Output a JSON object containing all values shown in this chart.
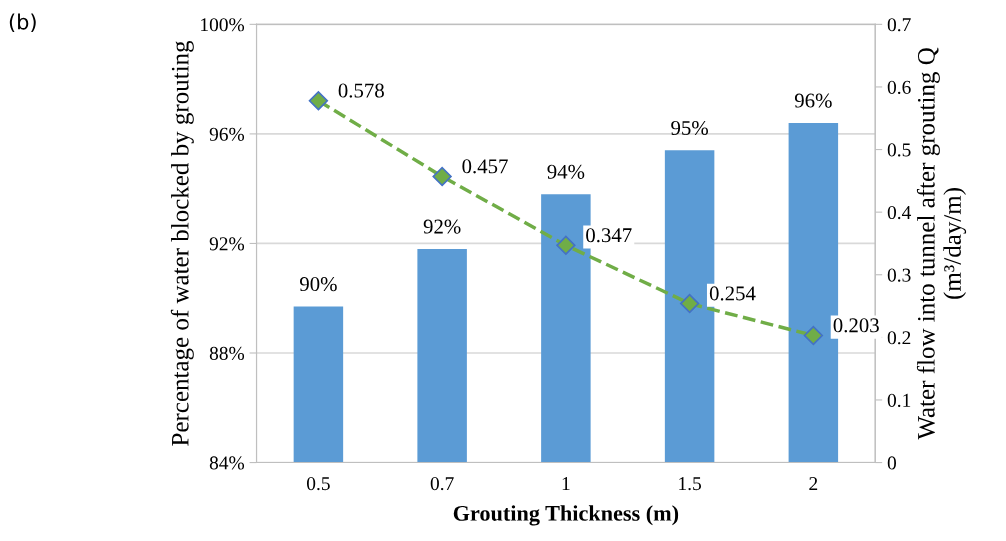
{
  "chart_data": {
    "type": "bar",
    "xlabel": "Grouting Thickness (m)",
    "ylabel": "Percentage of water blocked by grouting",
    "y2label": "Water flow into tunnel after grouting Q (m³/day/m)",
    "categories": [
      "0.5",
      "0.7",
      "1",
      "1.5",
      "2"
    ],
    "series": [
      {
        "color": "#5b9bd5",
        "values": [
          89.7,
          91.8,
          93.8,
          95.4,
          96.4
        ],
        "value_labels": [
          "90%",
          "92%",
          "94%",
          "95%",
          "96%"
        ]
      },
      {
        "type": "line",
        "axis": "y2",
        "color": "#70ad47",
        "values": [
          0.578,
          0.457,
          0.347,
          0.254,
          0.203
        ],
        "value_labels": [
          "0.578",
          "0.457",
          "0.347",
          "0.254",
          "0.203"
        ],
        "marker": "diamond",
        "line_style": "dashed"
      }
    ],
    "ylim": [
      84,
      100
    ],
    "yticks": [
      {
        "value": 84,
        "label": "84%"
      },
      {
        "value": 88,
        "label": "88%"
      },
      {
        "value": 92,
        "label": "92%"
      },
      {
        "value": 96,
        "label": "96%"
      },
      {
        "value": 100,
        "label": "100%"
      }
    ],
    "y2lim": [
      0,
      0.7
    ],
    "y2ticks": [
      0,
      0.1,
      0.2,
      0.3,
      0.4,
      0.5,
      0.6,
      0.7
    ],
    "grid": "y",
    "legend": false,
    "annotations": [
      "(b)"
    ]
  }
}
